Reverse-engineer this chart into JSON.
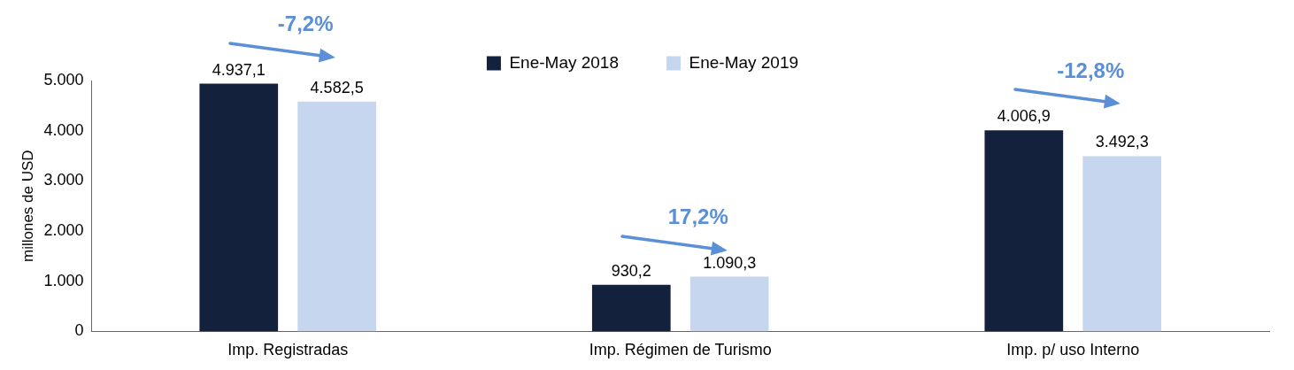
{
  "chart_data": {
    "type": "bar",
    "ylabel": "millones de USD",
    "categories": [
      "Imp. Registradas",
      "Imp. Régimen de Turismo",
      "Imp. p/ uso Interno"
    ],
    "series": [
      {
        "name": "Ene-May 2018",
        "color": "#14213d",
        "values": [
          4937.1,
          930.2,
          4006.9
        ],
        "value_labels": [
          "4.937,1",
          "930,2",
          "4.006,9"
        ]
      },
      {
        "name": "Ene-May 2019",
        "color": "#c5d6ee",
        "values": [
          4582.5,
          1090.3,
          3492.3
        ],
        "value_labels": [
          "4.582,5",
          "1.090,3",
          "3.492,3"
        ]
      }
    ],
    "ylim": [
      0,
      5000
    ],
    "yticks": [
      0,
      {
        "value": 1000,
        "label": "1.000"
      },
      {
        "value": 2000,
        "label": "2.000"
      },
      {
        "value": 3000,
        "label": "3.000"
      },
      {
        "value": 4000,
        "label": "4.000"
      },
      {
        "value": 5000,
        "label": "5.000"
      }
    ],
    "grid": false,
    "legend": "top",
    "annotations": [
      "-7,2%",
      "17,2%",
      "-12,8%"
    ]
  }
}
